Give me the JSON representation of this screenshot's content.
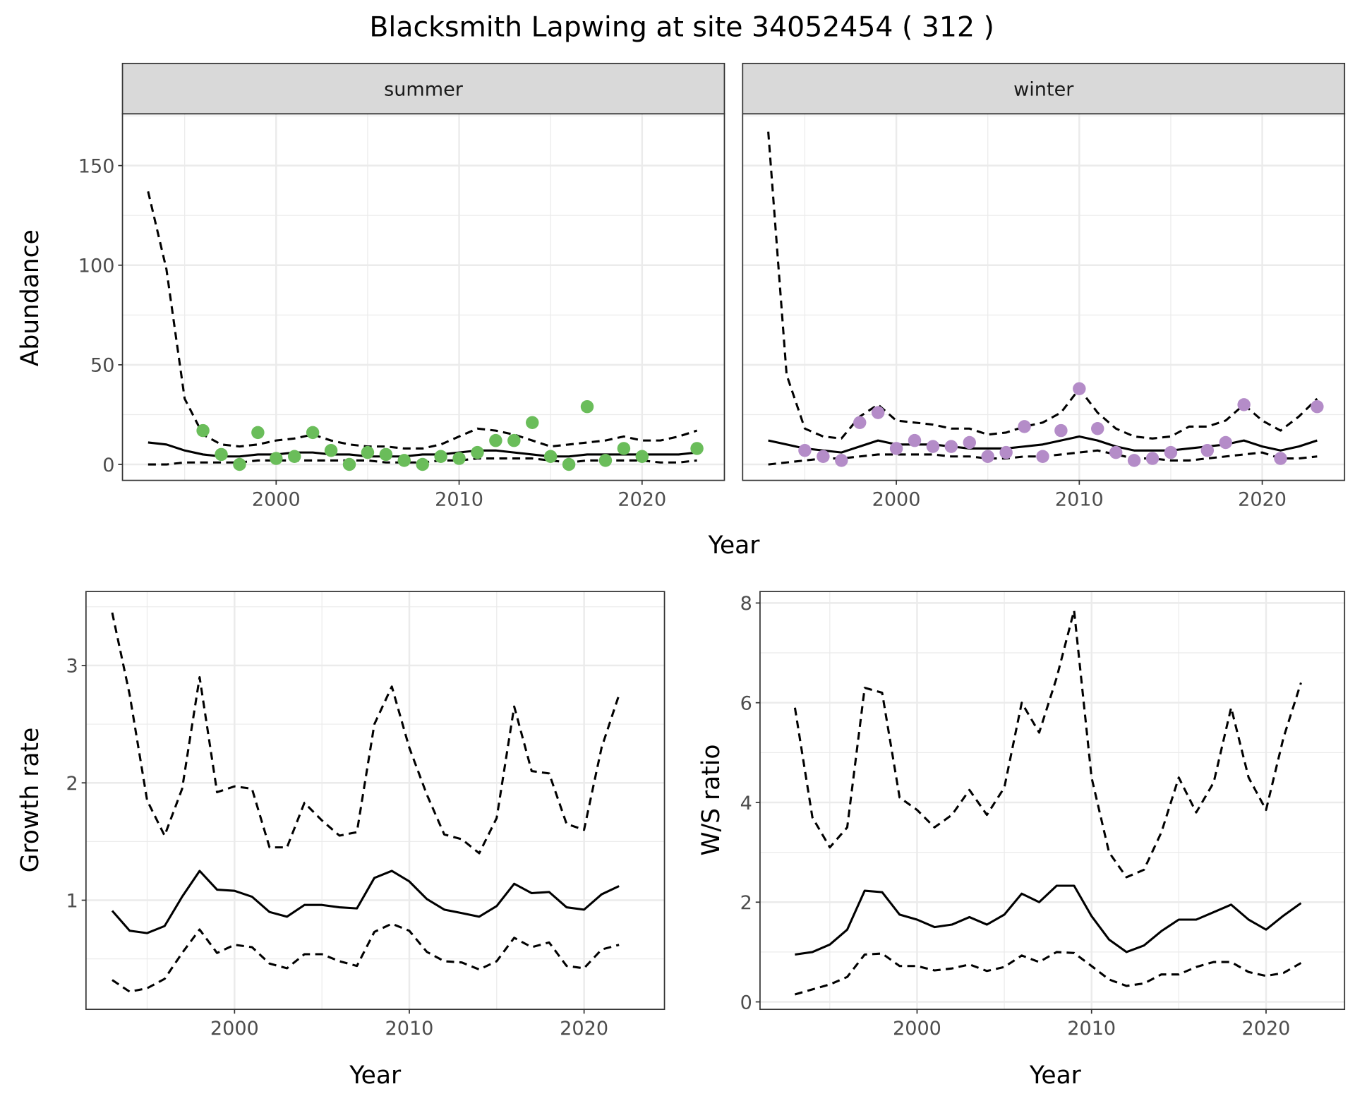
{
  "title": "Blacksmith Lapwing at site 34052454 ( 312 )",
  "colors": {
    "summer": "#6abd5a",
    "winter": "#b48cc8",
    "line": "#000000",
    "strip": "#d9d9d9"
  },
  "chart_data": [
    {
      "type": "line",
      "panel": "summer",
      "strip_label": "summer",
      "ylabel": "Abundance",
      "xlabel": "Year",
      "xlim": [
        1991.6,
        2024.5
      ],
      "ylim": [
        -8,
        176
      ],
      "x_ticks": [
        {
          "v": 2000,
          "label": "2000"
        },
        {
          "v": 2010,
          "label": "2010"
        },
        {
          "v": 2020,
          "label": "2020"
        }
      ],
      "y_ticks": [
        {
          "v": 0,
          "label": "0"
        },
        {
          "v": 50,
          "label": "50"
        },
        {
          "v": 100,
          "label": "100"
        },
        {
          "v": 150,
          "label": "150"
        }
      ],
      "x": [
        1993,
        1994,
        1995,
        1996,
        1997,
        1998,
        1999,
        2000,
        2001,
        2002,
        2003,
        2004,
        2005,
        2006,
        2007,
        2008,
        2009,
        2010,
        2011,
        2012,
        2013,
        2014,
        2015,
        2016,
        2017,
        2018,
        2019,
        2020,
        2021,
        2022,
        2023
      ],
      "series": [
        {
          "name": "mean",
          "style": "solid",
          "values": [
            11,
            10,
            7,
            5,
            4,
            4,
            5,
            5,
            6,
            6,
            5,
            5,
            4,
            4,
            4,
            5,
            5,
            6,
            7,
            7,
            6,
            5,
            4,
            4,
            5,
            5,
            5,
            5,
            5,
            5,
            6
          ]
        },
        {
          "name": "upper",
          "style": "dashed",
          "values": [
            137,
            98,
            33,
            15,
            10,
            9,
            10,
            12,
            13,
            15,
            12,
            10,
            9,
            9,
            8,
            8,
            10,
            14,
            18,
            17,
            15,
            12,
            9,
            10,
            11,
            12,
            14,
            12,
            12,
            14,
            17
          ]
        },
        {
          "name": "lower",
          "style": "dashed",
          "values": [
            0,
            0,
            1,
            1,
            1,
            1,
            2,
            2,
            2,
            2,
            2,
            2,
            2,
            1,
            1,
            1,
            2,
            2,
            3,
            3,
            3,
            3,
            2,
            1,
            2,
            2,
            2,
            2,
            1,
            1,
            2
          ]
        }
      ],
      "points": {
        "x": [
          1996,
          1997,
          1998,
          1999,
          2000,
          2001,
          2002,
          2003,
          2004,
          2005,
          2006,
          2007,
          2008,
          2009,
          2010,
          2011,
          2012,
          2013,
          2014,
          2015,
          2016,
          2017,
          2018,
          2019,
          2020,
          2023
        ],
        "y": [
          17,
          5,
          0,
          16,
          3,
          4,
          16,
          7,
          0,
          6,
          5,
          2,
          0,
          4,
          3,
          6,
          12,
          12,
          21,
          4,
          0,
          29,
          2,
          8,
          4,
          8
        ]
      }
    },
    {
      "type": "line",
      "panel": "winter",
      "strip_label": "winter",
      "xlim": [
        1991.6,
        2024.5
      ],
      "ylim": [
        -8,
        176
      ],
      "x_ticks": [
        {
          "v": 2000,
          "label": "2000"
        },
        {
          "v": 2010,
          "label": "2010"
        },
        {
          "v": 2020,
          "label": "2020"
        }
      ],
      "y_ticks": [],
      "x": [
        1993,
        1994,
        1995,
        1996,
        1997,
        1998,
        1999,
        2000,
        2001,
        2002,
        2003,
        2004,
        2005,
        2006,
        2007,
        2008,
        2009,
        2010,
        2011,
        2012,
        2013,
        2014,
        2015,
        2016,
        2017,
        2018,
        2019,
        2020,
        2021,
        2022,
        2023
      ],
      "series": [
        {
          "name": "mean",
          "style": "solid",
          "values": [
            12,
            10,
            8,
            7,
            6,
            9,
            12,
            10,
            10,
            10,
            9,
            8,
            8,
            8,
            9,
            10,
            12,
            14,
            12,
            9,
            7,
            7,
            7,
            8,
            9,
            10,
            12,
            9,
            7,
            9,
            12
          ]
        },
        {
          "name": "upper",
          "style": "dashed",
          "values": [
            167,
            45,
            18,
            14,
            13,
            24,
            30,
            22,
            21,
            20,
            18,
            18,
            15,
            16,
            19,
            21,
            26,
            38,
            26,
            18,
            14,
            13,
            14,
            19,
            19,
            22,
            30,
            22,
            17,
            24,
            33
          ]
        },
        {
          "name": "lower",
          "style": "dashed",
          "values": [
            0,
            1,
            2,
            3,
            3,
            4,
            5,
            5,
            5,
            5,
            4,
            4,
            3,
            3,
            4,
            4,
            5,
            6,
            7,
            5,
            3,
            3,
            2,
            2,
            3,
            4,
            5,
            6,
            3,
            3,
            4
          ]
        }
      ],
      "points": {
        "x": [
          1995,
          1996,
          1997,
          1998,
          1999,
          2000,
          2001,
          2002,
          2003,
          2004,
          2005,
          2006,
          2007,
          2008,
          2009,
          2010,
          2011,
          2012,
          2013,
          2014,
          2015,
          2017,
          2018,
          2019,
          2021,
          2023
        ],
        "y": [
          7,
          4,
          2,
          21,
          26,
          8,
          12,
          9,
          9,
          11,
          4,
          6,
          19,
          4,
          17,
          38,
          18,
          6,
          2,
          3,
          6,
          7,
          11,
          30,
          3,
          29
        ]
      }
    },
    {
      "type": "line",
      "panel": "growth",
      "ylabel": "Growth rate",
      "xlabel": "Year",
      "xlim": [
        1991.5,
        2024.6
      ],
      "ylim": [
        0.07,
        3.63
      ],
      "x_ticks": [
        {
          "v": 2000,
          "label": "2000"
        },
        {
          "v": 2010,
          "label": "2010"
        },
        {
          "v": 2020,
          "label": "2020"
        }
      ],
      "y_ticks": [
        {
          "v": 1,
          "label": "1"
        },
        {
          "v": 2,
          "label": "2"
        },
        {
          "v": 3,
          "label": "3"
        }
      ],
      "x": [
        1993,
        1994,
        1995,
        1996,
        1997,
        1998,
        1999,
        2000,
        2001,
        2002,
        2003,
        2004,
        2005,
        2006,
        2007,
        2008,
        2009,
        2010,
        2011,
        2012,
        2013,
        2014,
        2015,
        2016,
        2017,
        2018,
        2019,
        2020,
        2021,
        2022
      ],
      "series": [
        {
          "name": "mean",
          "style": "solid",
          "values": [
            0.91,
            0.74,
            0.72,
            0.78,
            1.03,
            1.25,
            1.09,
            1.08,
            1.03,
            0.9,
            0.86,
            0.96,
            0.96,
            0.94,
            0.93,
            1.19,
            1.25,
            1.16,
            1.01,
            0.92,
            0.89,
            0.86,
            0.95,
            1.14,
            1.06,
            1.07,
            0.94,
            0.92,
            1.05,
            1.12
          ]
        },
        {
          "name": "upper",
          "style": "dashed",
          "values": [
            3.45,
            2.75,
            1.85,
            1.55,
            1.95,
            2.9,
            1.92,
            1.97,
            1.95,
            1.45,
            1.45,
            1.83,
            1.68,
            1.55,
            1.58,
            2.5,
            2.82,
            2.3,
            1.9,
            1.56,
            1.52,
            1.4,
            1.7,
            2.65,
            2.1,
            2.08,
            1.65,
            1.6,
            2.3,
            2.75
          ]
        },
        {
          "name": "lower",
          "style": "dashed",
          "values": [
            0.32,
            0.22,
            0.25,
            0.33,
            0.55,
            0.75,
            0.55,
            0.62,
            0.6,
            0.46,
            0.42,
            0.54,
            0.54,
            0.48,
            0.44,
            0.73,
            0.8,
            0.74,
            0.56,
            0.48,
            0.47,
            0.41,
            0.48,
            0.68,
            0.6,
            0.64,
            0.44,
            0.42,
            0.58,
            0.62
          ]
        }
      ]
    },
    {
      "type": "line",
      "panel": "ws",
      "ylabel": "W/S ratio",
      "xlabel": "Year",
      "xlim": [
        1991.0,
        2024.5
      ],
      "ylim": [
        -0.15,
        8.23
      ],
      "x_ticks": [
        {
          "v": 2000,
          "label": "2000"
        },
        {
          "v": 2010,
          "label": "2010"
        },
        {
          "v": 2020,
          "label": "2020"
        }
      ],
      "y_ticks": [
        {
          "v": 0,
          "label": "0"
        },
        {
          "v": 2,
          "label": "2"
        },
        {
          "v": 4,
          "label": "4"
        },
        {
          "v": 6,
          "label": "6"
        },
        {
          "v": 8,
          "label": "8"
        }
      ],
      "x": [
        1993,
        1994,
        1995,
        1996,
        1997,
        1998,
        1999,
        2000,
        2001,
        2002,
        2003,
        2004,
        2005,
        2006,
        2007,
        2008,
        2009,
        2010,
        2011,
        2012,
        2013,
        2014,
        2015,
        2016,
        2017,
        2018,
        2019,
        2020,
        2021,
        2022
      ],
      "series": [
        {
          "name": "mean",
          "style": "solid",
          "values": [
            0.95,
            1.0,
            1.15,
            1.45,
            2.23,
            2.2,
            1.75,
            1.65,
            1.5,
            1.55,
            1.7,
            1.55,
            1.75,
            2.17,
            2.0,
            2.33,
            2.33,
            1.72,
            1.25,
            1.0,
            1.13,
            1.42,
            1.65,
            1.65,
            1.8,
            1.95,
            1.65,
            1.45,
            1.73,
            1.98
          ]
        },
        {
          "name": "upper",
          "style": "dashed",
          "values": [
            5.9,
            3.7,
            3.1,
            3.5,
            6.3,
            6.2,
            4.1,
            3.85,
            3.5,
            3.75,
            4.25,
            3.75,
            4.3,
            6.0,
            5.4,
            6.5,
            7.85,
            4.5,
            3.0,
            2.5,
            2.65,
            3.4,
            4.5,
            3.8,
            4.4,
            5.9,
            4.5,
            3.85,
            5.3,
            6.4
          ]
        },
        {
          "name": "lower",
          "style": "dashed",
          "values": [
            0.15,
            0.25,
            0.35,
            0.5,
            0.95,
            0.97,
            0.72,
            0.72,
            0.63,
            0.67,
            0.75,
            0.62,
            0.7,
            0.93,
            0.8,
            1.0,
            0.98,
            0.72,
            0.45,
            0.32,
            0.37,
            0.55,
            0.55,
            0.7,
            0.8,
            0.8,
            0.6,
            0.52,
            0.58,
            0.78
          ]
        }
      ]
    }
  ]
}
